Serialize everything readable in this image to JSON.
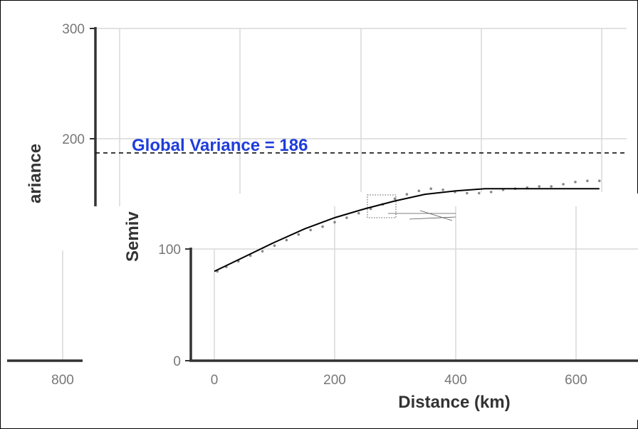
{
  "chart_data": [
    {
      "type": "line",
      "title": "",
      "xlabel": "Distance (km)",
      "ylabel": "Semivariance",
      "xlim": [
        -50,
        700
      ],
      "ylim": [
        0,
        300
      ],
      "x_ticks": [
        "0",
        "200",
        "400",
        "600"
      ],
      "y_ticks": [
        "0",
        "100",
        "200",
        "300"
      ],
      "grid": true,
      "annotation": {
        "text": "Global Variance = 186",
        "y": 186,
        "color": "#1f3ddb"
      },
      "series": [
        {
          "kind": "points",
          "x": [
            5,
            20,
            40,
            60,
            80,
            100,
            120,
            140,
            160,
            180,
            200,
            220,
            240,
            260,
            280,
            300,
            320,
            340,
            360,
            380,
            400,
            420,
            440,
            460,
            480,
            500,
            520,
            540,
            560,
            580,
            600,
            620,
            640
          ],
          "values": [
            80,
            84,
            89,
            94,
            98,
            103,
            108,
            113,
            117,
            120,
            124,
            128,
            132,
            136,
            140,
            145,
            149,
            152,
            154,
            153,
            151,
            150,
            150,
            151,
            153,
            154,
            155,
            156,
            156,
            158,
            160,
            161,
            161
          ]
        },
        {
          "kind": "model",
          "x": [
            0,
            50,
            100,
            150,
            200,
            250,
            300,
            350,
            400,
            450,
            500,
            550,
            600,
            640
          ],
          "values": [
            80,
            93,
            106,
            118,
            128,
            136,
            143,
            149,
            152,
            154,
            154,
            154,
            154,
            154
          ]
        }
      ]
    }
  ],
  "background_plot": {
    "y_tick": "300",
    "y_tick_2": "200",
    "x_tick": "800",
    "ylabel_fragment": "ariance",
    "ylabel_fragment_2": "Semiv"
  },
  "colors": {
    "grid": "#d9d9d9",
    "axis": "#333333",
    "points": "#888888",
    "model": "#000000"
  }
}
